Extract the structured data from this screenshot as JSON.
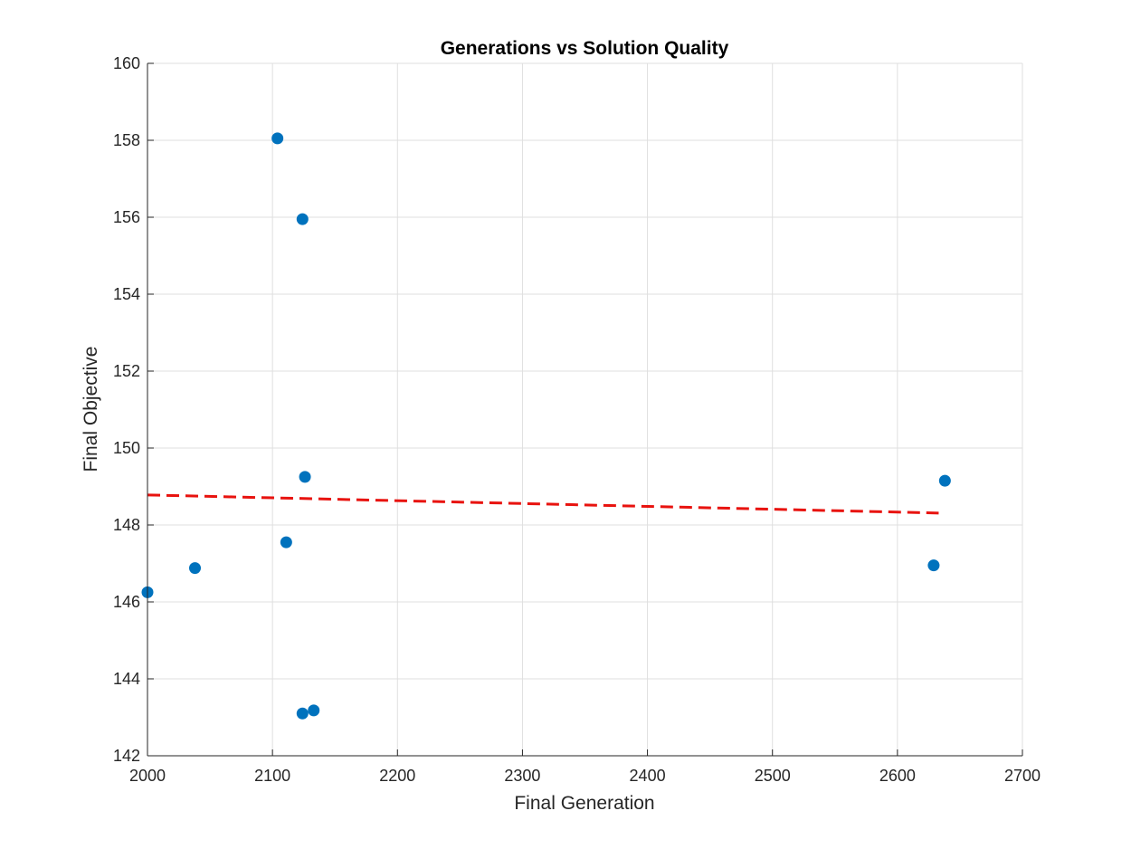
{
  "chart_data": {
    "type": "scatter",
    "title": "Generations vs Solution Quality",
    "xlabel": "Final Generation",
    "ylabel": "Final Objective",
    "xlim": [
      2000,
      2700
    ],
    "ylim": [
      142,
      160
    ],
    "xticks": [
      2000,
      2100,
      2200,
      2300,
      2400,
      2500,
      2600,
      2700
    ],
    "yticks": [
      142,
      144,
      146,
      148,
      150,
      152,
      154,
      156,
      158,
      160
    ],
    "grid": true,
    "series": [
      {
        "kind": "scatter",
        "color": "#0072BD",
        "points": [
          {
            "x": 2000,
            "y": 146.25
          },
          {
            "x": 2038,
            "y": 146.88
          },
          {
            "x": 2104,
            "y": 158.05
          },
          {
            "x": 2111,
            "y": 147.55
          },
          {
            "x": 2124,
            "y": 155.95
          },
          {
            "x": 2126,
            "y": 149.25
          },
          {
            "x": 2124,
            "y": 143.1
          },
          {
            "x": 2133,
            "y": 143.18
          },
          {
            "x": 2629,
            "y": 146.95
          },
          {
            "x": 2638,
            "y": 149.15
          }
        ]
      },
      {
        "kind": "line",
        "style": "dashed",
        "color": "#E8130F",
        "points": [
          {
            "x": 2000,
            "y": 148.78
          },
          {
            "x": 2633,
            "y": 148.31
          }
        ]
      }
    ]
  }
}
